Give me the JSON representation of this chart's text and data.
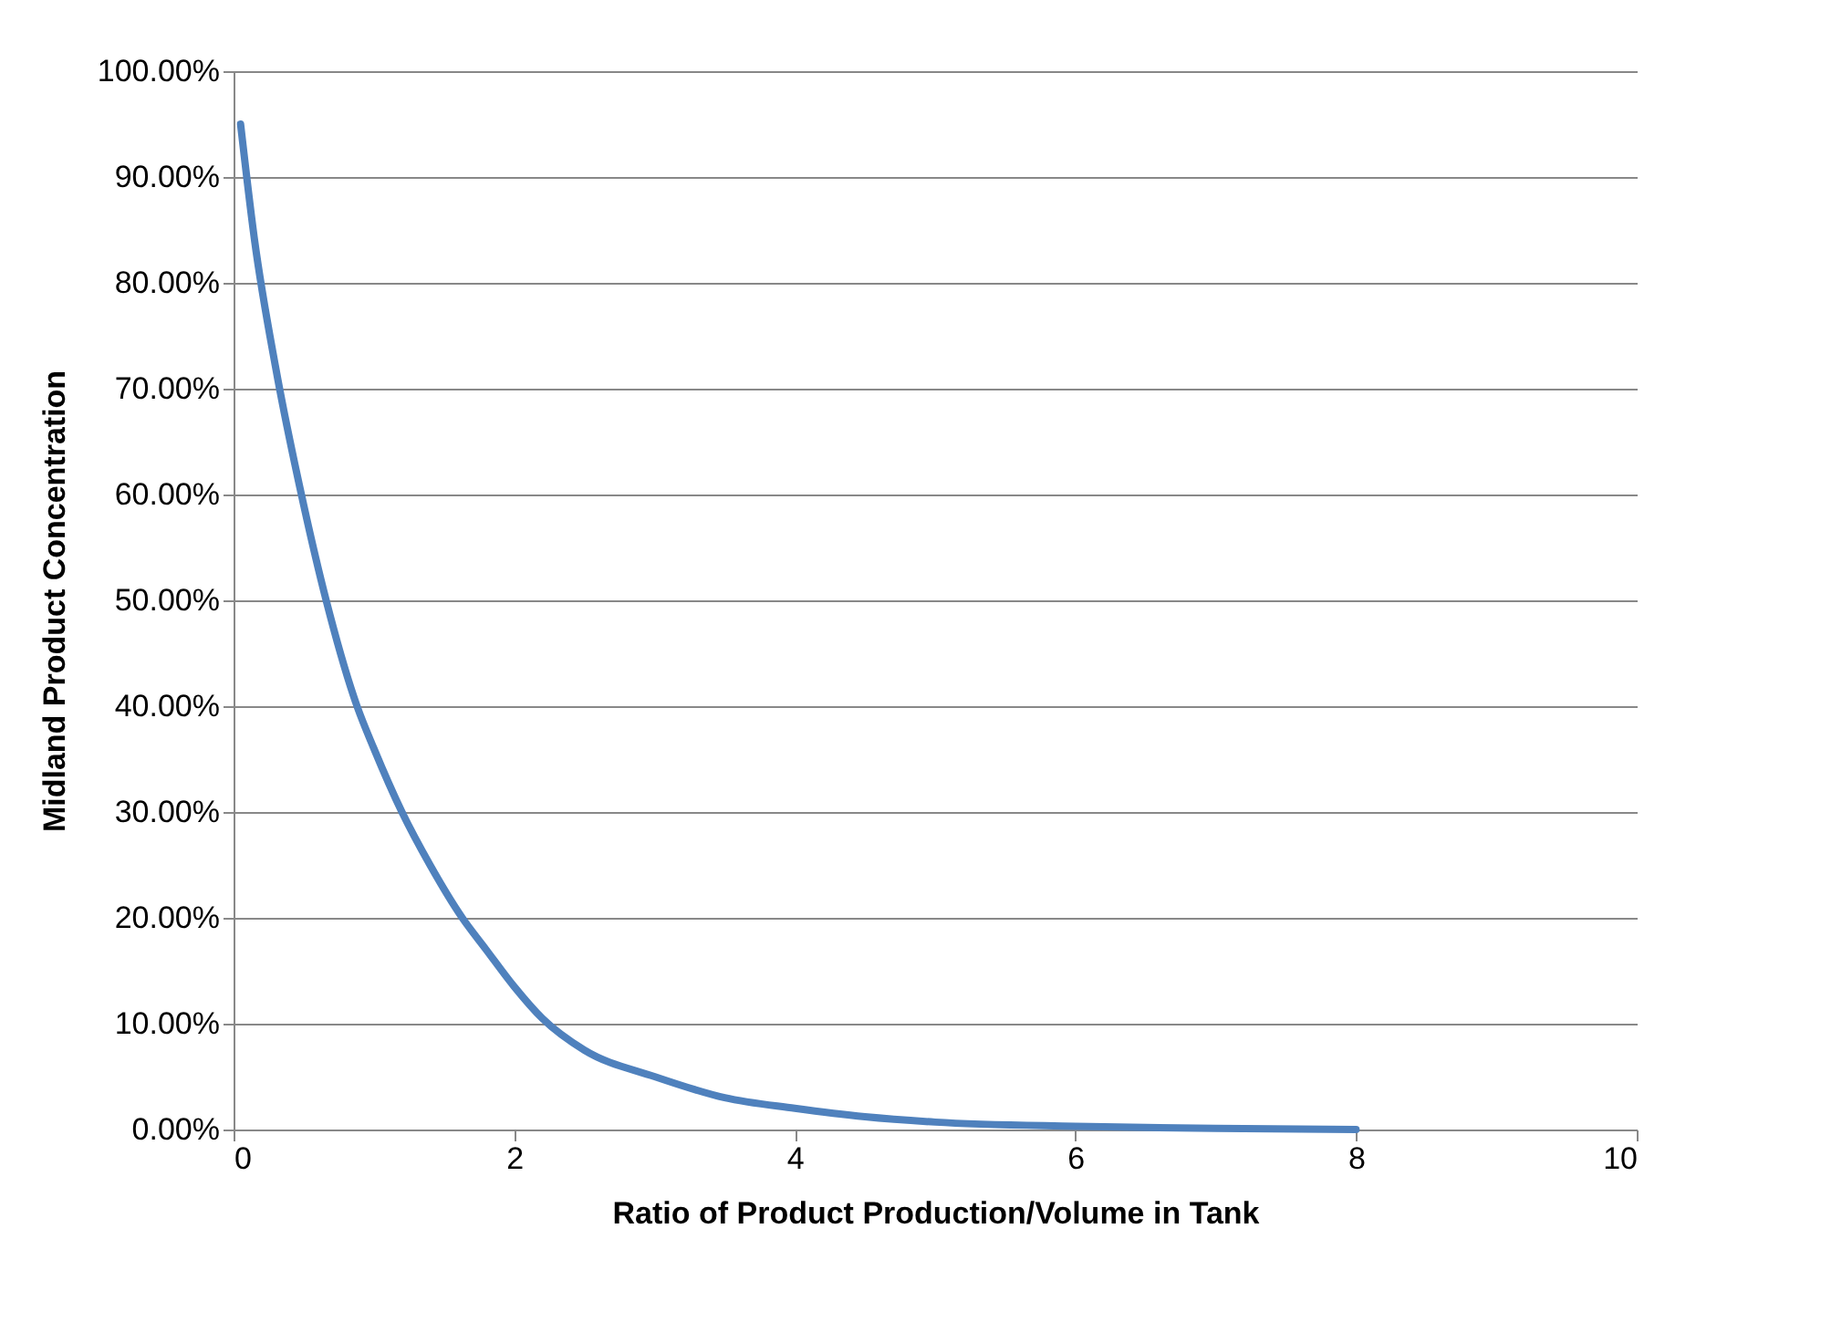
{
  "chart_data": {
    "type": "line",
    "xlabel": "Ratio of Product Production/Volume in Tank",
    "ylabel": "Midland Product Concentration",
    "grid": "y",
    "xlim": [
      0,
      10
    ],
    "xticks": [
      0,
      2,
      4,
      6,
      8,
      10
    ],
    "ylim": [
      0,
      100
    ],
    "yticks": [
      {
        "value": 0,
        "label": "0.00%"
      },
      {
        "value": 10,
        "label": "10.00%"
      },
      {
        "value": 20,
        "label": "20.00%"
      },
      {
        "value": 30,
        "label": "30.00%"
      },
      {
        "value": 40,
        "label": "40.00%"
      },
      {
        "value": 50,
        "label": "50.00%"
      },
      {
        "value": 60,
        "label": "60.00%"
      },
      {
        "value": 70,
        "label": "70.00%"
      },
      {
        "value": 80,
        "label": "80.00%"
      },
      {
        "value": 90,
        "label": "90.00%"
      },
      {
        "value": 100,
        "label": "100.00%"
      }
    ],
    "line_style": "solid",
    "marker": "none",
    "series": [
      {
        "color": "#4f81bd",
        "x": [
          0.05,
          0.15,
          0.3,
          0.5,
          0.66,
          0.88,
          1.0,
          1.2,
          1.4,
          1.63,
          1.8,
          2.0,
          2.2,
          2.5,
          3.0,
          3.5,
          4.0,
          4.5,
          5.0,
          6.0,
          7.0,
          8.0
        ],
        "values": [
          95,
          84,
          72,
          59,
          50,
          40,
          36,
          30,
          25,
          20,
          17,
          13.5,
          10.5,
          7.5,
          5,
          3,
          2,
          1.2,
          0.7,
          0.3,
          0.1,
          0
        ]
      }
    ]
  }
}
